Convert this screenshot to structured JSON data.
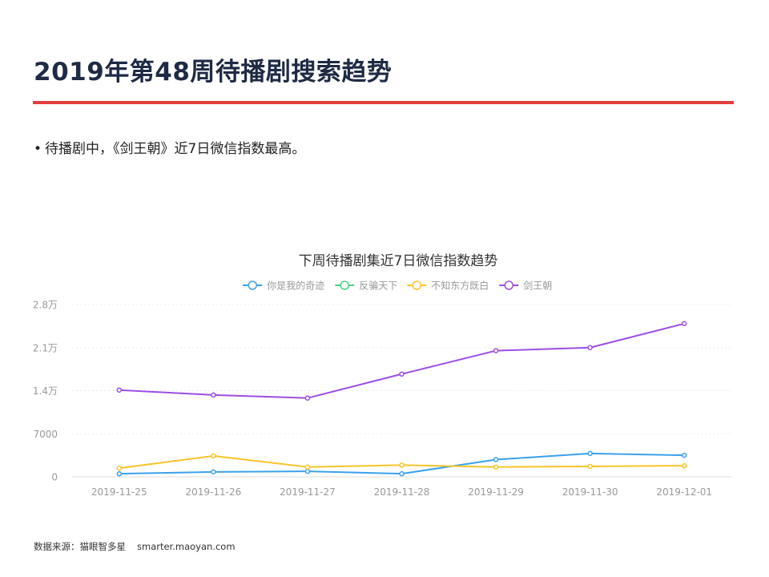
{
  "page": {
    "title": "2019年第48周待播剧搜索趋势",
    "bullet": "待播剧中，《剑王朝》近7日微信指数最高。",
    "source_label": "数据来源：猫眼智多星",
    "source_url": "smarter.maoyan.com"
  },
  "colors": {
    "title_rule": "#e23c3c",
    "axis_text": "#999999",
    "grid": "#eeeeee"
  },
  "chart_data": {
    "type": "line",
    "title": "下周待播剧集近7日微信指数趋势",
    "legend_position": "top-center",
    "categories": [
      "2019-11-25",
      "2019-11-26",
      "2019-11-27",
      "2019-11-28",
      "2019-11-29",
      "2019-11-30",
      "2019-12-01"
    ],
    "y_ticks": [
      {
        "value": 0,
        "label": "0"
      },
      {
        "value": 7000,
        "label": "7000"
      },
      {
        "value": 14000,
        "label": "1.4万"
      },
      {
        "value": 21000,
        "label": "2.1万"
      },
      {
        "value": 28000,
        "label": "2.8万"
      }
    ],
    "ylim": [
      0,
      28000
    ],
    "grid": true,
    "series": [
      {
        "name": "你是我的奇迹",
        "color": "#3ba1ec",
        "values": [
          500,
          800,
          900,
          500,
          2800,
          3800,
          3500
        ]
      },
      {
        "name": "反骗天下",
        "color": "#4cd07d",
        "values": [
          null,
          null,
          null,
          null,
          null,
          null,
          null
        ]
      },
      {
        "name": "不知东方既白",
        "color": "#f7c528",
        "values": [
          1400,
          3400,
          1600,
          1900,
          1600,
          1700,
          1800
        ]
      },
      {
        "name": "剑王朝",
        "color": "#9b4ee3",
        "values": [
          14100,
          13300,
          12800,
          16700,
          20500,
          21000,
          24900
        ]
      }
    ]
  }
}
